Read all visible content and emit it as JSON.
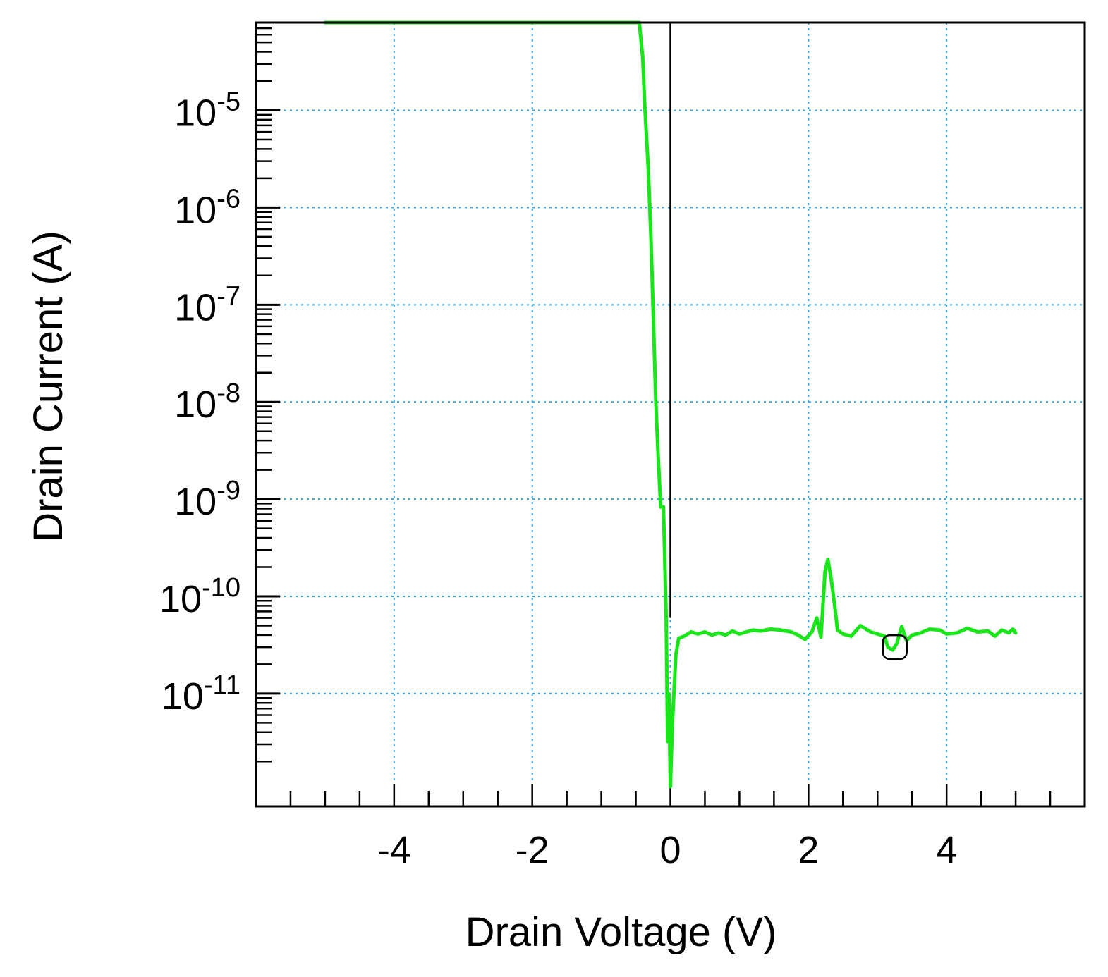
{
  "chart_data": {
    "type": "line",
    "title": "",
    "xlabel": "Drain Voltage (V)",
    "ylabel": "Drain Current (A)",
    "xlim": [
      -6,
      6
    ],
    "ylim": [
      6.9e-13,
      8e-05
    ],
    "y_scale": "log",
    "grid": true,
    "x_ticks": [
      {
        "value": -4,
        "label": "-4"
      },
      {
        "value": -2,
        "label": "-2"
      },
      {
        "value": 0,
        "label": "0"
      },
      {
        "value": 2,
        "label": "2"
      },
      {
        "value": 4,
        "label": "4"
      }
    ],
    "y_ticks": [
      {
        "value": 1e-05,
        "base": "10",
        "exp": "-5"
      },
      {
        "value": 1e-06,
        "base": "10",
        "exp": "-6"
      },
      {
        "value": 1e-07,
        "base": "10",
        "exp": "-7"
      },
      {
        "value": 1e-08,
        "base": "10",
        "exp": "-8"
      },
      {
        "value": 1e-09,
        "base": "10",
        "exp": "-9"
      },
      {
        "value": 1e-10,
        "base": "10",
        "exp": "-10"
      },
      {
        "value": 1e-11,
        "base": "10",
        "exp": "-11"
      }
    ],
    "series": [
      {
        "color": "#19e619",
        "points": [
          [
            -5.0,
            8e-05
          ],
          [
            -0.45,
            8e-05
          ],
          [
            -0.4,
            3.5e-05
          ],
          [
            -0.37,
            1.1e-05
          ],
          [
            -0.32,
            2.5e-06
          ],
          [
            -0.28,
            4.6e-07
          ],
          [
            -0.25,
            9e-08
          ],
          [
            -0.21,
            1e-08
          ],
          [
            -0.18,
            3.1e-09
          ],
          [
            -0.14,
            8.3e-10
          ],
          [
            -0.1,
            8.3e-10
          ],
          [
            -0.06,
            6e-11
          ],
          [
            -0.04,
            3.2e-12
          ],
          [
            -0.02,
            1e-11
          ],
          [
            0.0,
            1.1e-12
          ],
          [
            0.03,
            5e-12
          ],
          [
            0.08,
            2.5e-11
          ],
          [
            0.12,
            3.7e-11
          ],
          [
            0.2,
            3.9e-11
          ],
          [
            0.3,
            4.3e-11
          ],
          [
            0.4,
            4.1e-11
          ],
          [
            0.5,
            4.3e-11
          ],
          [
            0.6,
            4e-11
          ],
          [
            0.7,
            4.2e-11
          ],
          [
            0.8,
            4e-11
          ],
          [
            0.9,
            4.4e-11
          ],
          [
            1.0,
            4.1e-11
          ],
          [
            1.1,
            4.3e-11
          ],
          [
            1.2,
            4.5e-11
          ],
          [
            1.3,
            4.4e-11
          ],
          [
            1.45,
            4.6e-11
          ],
          [
            1.6,
            4.5e-11
          ],
          [
            1.75,
            4.3e-11
          ],
          [
            1.85,
            4e-11
          ],
          [
            1.95,
            3.6e-11
          ],
          [
            2.05,
            4.3e-11
          ],
          [
            2.12,
            6e-11
          ],
          [
            2.18,
            3.8e-11
          ],
          [
            2.24,
            1.8e-10
          ],
          [
            2.28,
            2.4e-10
          ],
          [
            2.33,
            1.5e-10
          ],
          [
            2.38,
            8e-11
          ],
          [
            2.42,
            4.5e-11
          ],
          [
            2.5,
            4.1e-11
          ],
          [
            2.62,
            3.9e-11
          ],
          [
            2.75,
            5e-11
          ],
          [
            2.9,
            4.3e-11
          ],
          [
            3.0,
            4.1e-11
          ],
          [
            3.1,
            3.9e-11
          ],
          [
            3.15,
            3e-11
          ],
          [
            3.22,
            2.8e-11
          ],
          [
            3.28,
            3.3e-11
          ],
          [
            3.35,
            4.9e-11
          ],
          [
            3.42,
            3.5e-11
          ],
          [
            3.5,
            4e-11
          ],
          [
            3.62,
            4.2e-11
          ],
          [
            3.75,
            4.6e-11
          ],
          [
            3.9,
            4.5e-11
          ],
          [
            4.0,
            4.1e-11
          ],
          [
            4.15,
            4.2e-11
          ],
          [
            4.3,
            4.7e-11
          ],
          [
            4.45,
            4.3e-11
          ],
          [
            4.6,
            4.4e-11
          ],
          [
            4.7,
            3.9e-11
          ],
          [
            4.8,
            4.5e-11
          ],
          [
            4.9,
            4.2e-11
          ],
          [
            4.96,
            4.6e-11
          ],
          [
            5.0,
            4.2e-11
          ]
        ]
      }
    ],
    "reference_line": {
      "x": 0,
      "y_from": 6e-11,
      "color": "#000000"
    },
    "marker": {
      "x": 3.25,
      "y": 3e-11,
      "shape": "rounded-square",
      "color": "#000000"
    },
    "colors": {
      "grid": "#33a5e6",
      "axes": "#000000",
      "curve": "#19e619"
    }
  }
}
